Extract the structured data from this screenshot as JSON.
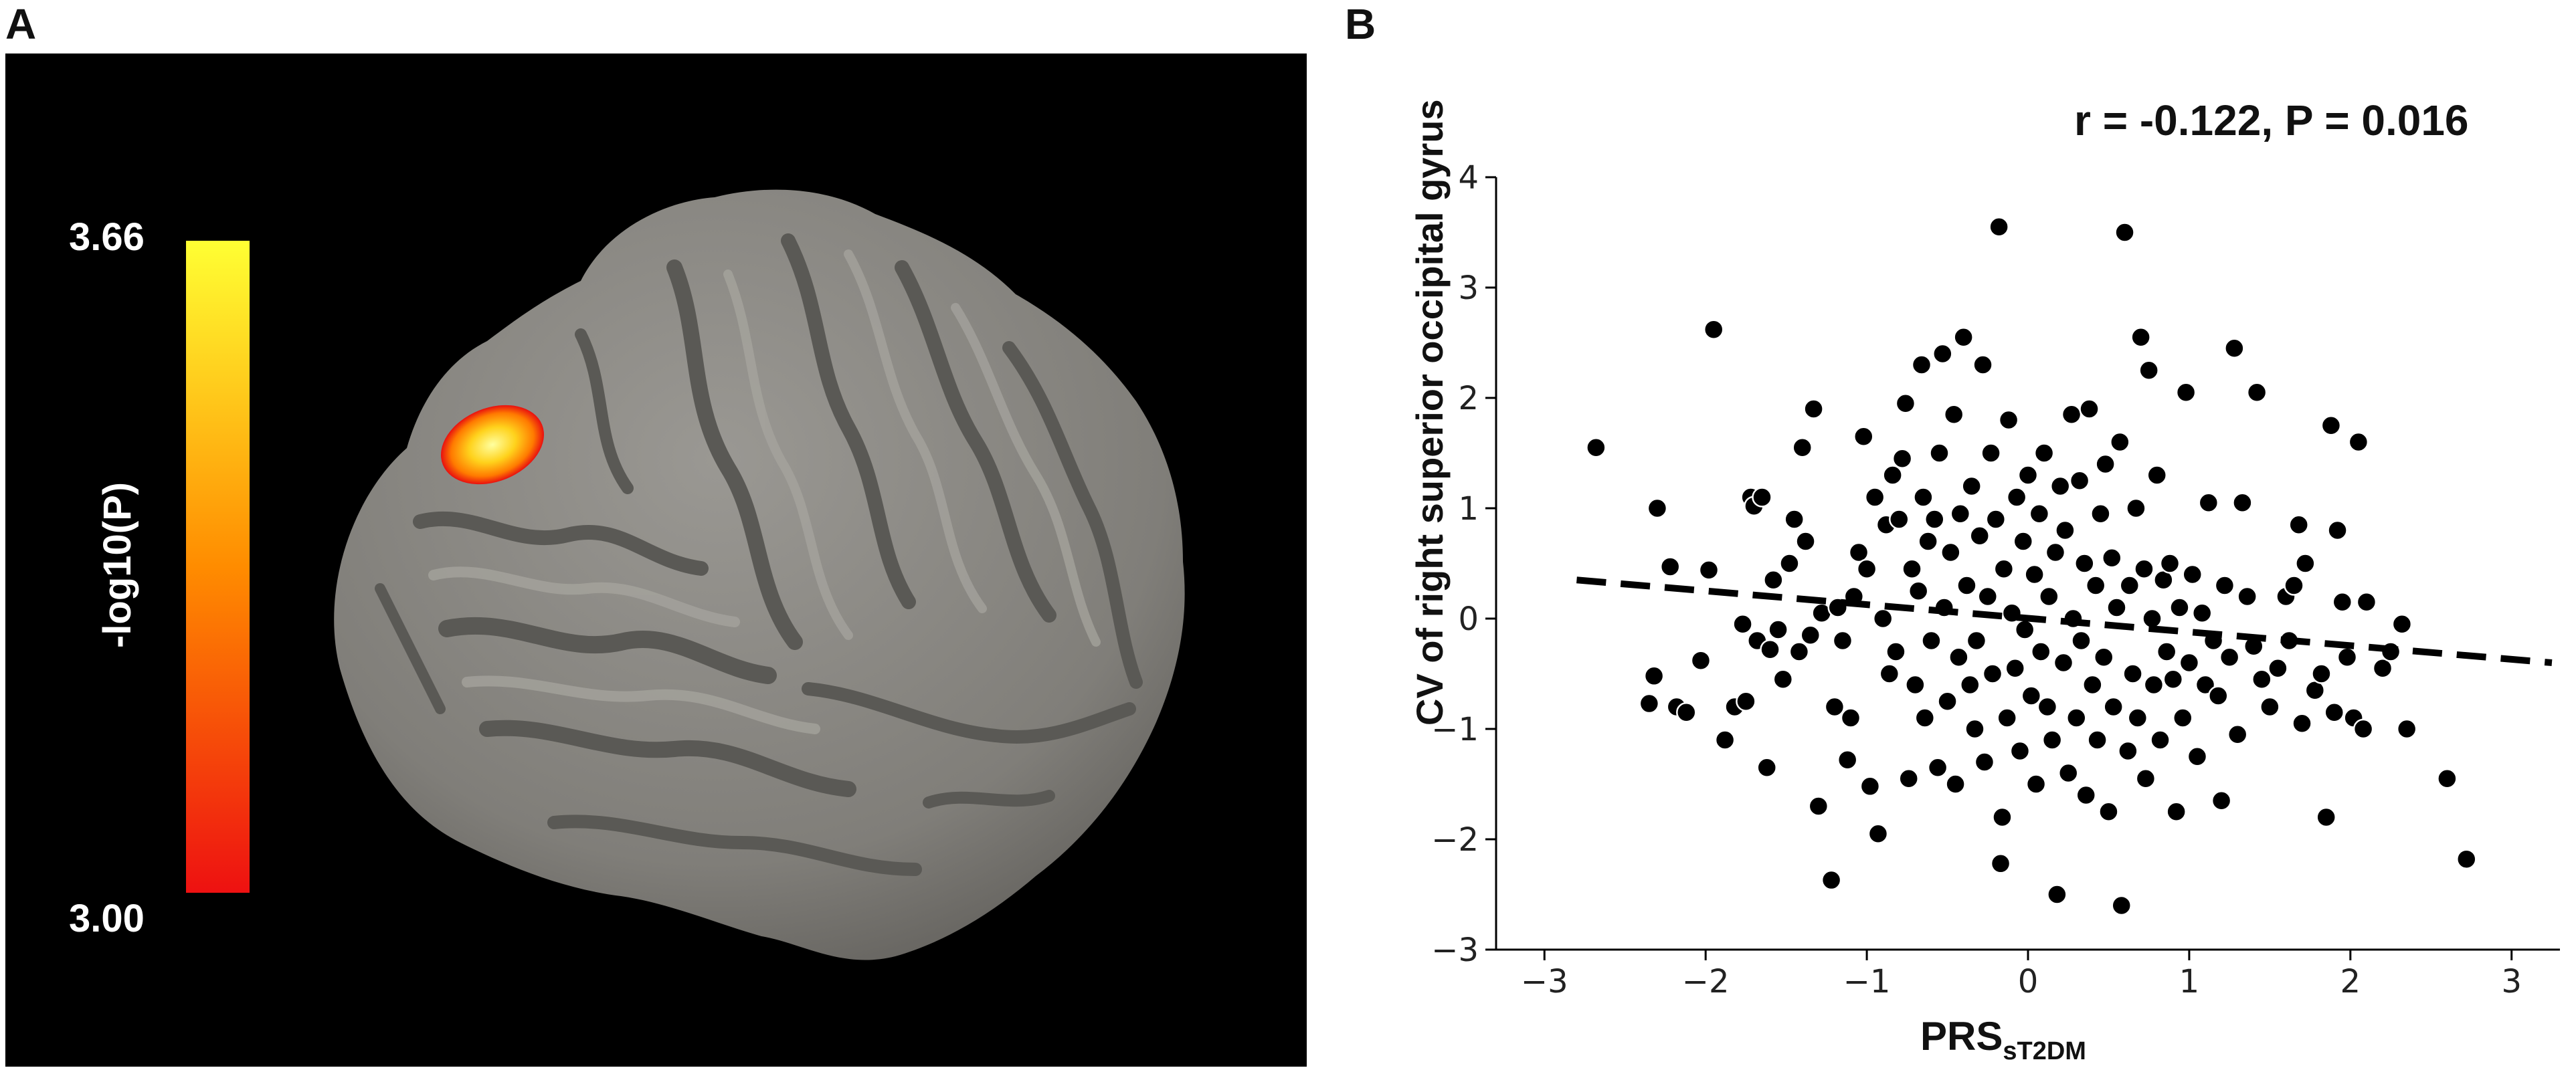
{
  "panel_a": {
    "letter": "A",
    "colorbar": {
      "max_label": "3.66",
      "min_label": "3.00",
      "title": "-log10(P)",
      "color_top": "#ffff33",
      "color_mid": "#ff8c00",
      "color_bottom": "#ee1111"
    }
  },
  "panel_b": {
    "letter": "B",
    "stat_label": "r = -0.122, P = 0.016"
  },
  "chart_data": {
    "type": "scatter",
    "xlabel_main": "PRS",
    "xlabel_sub": "sT2DM",
    "ylabel": "CV of right superior occipital gyrus",
    "xlim": [
      -3.3,
      3.3
    ],
    "ylim": [
      -3,
      4
    ],
    "xticks": [
      -3,
      -2,
      -1,
      0,
      1,
      2,
      3
    ],
    "xtick_labels": [
      "−3",
      "−2",
      "−1",
      "0",
      "1",
      "2",
      "3"
    ],
    "yticks": [
      -3,
      -2,
      -1,
      0,
      1,
      2,
      3,
      4
    ],
    "ytick_labels": [
      "−3",
      "−2",
      "−1",
      "0",
      "1",
      "2",
      "3",
      "4"
    ],
    "grid": false,
    "legend": "none",
    "point_color": "#000000",
    "trend_line": {
      "style": "dashed",
      "x": [
        -2.8,
        3.25
      ],
      "y": [
        0.35,
        -0.4
      ]
    },
    "points": [
      [
        -2.68,
        1.55
      ],
      [
        -2.3,
        1.0
      ],
      [
        -2.32,
        -0.52
      ],
      [
        -2.35,
        -0.77
      ],
      [
        -2.22,
        0.47
      ],
      [
        -2.18,
        -0.8
      ],
      [
        -2.12,
        -0.85
      ],
      [
        -1.95,
        2.62
      ],
      [
        -1.98,
        0.44
      ],
      [
        -2.03,
        -0.38
      ],
      [
        -1.88,
        -1.1
      ],
      [
        -1.82,
        -0.8
      ],
      [
        -1.77,
        -0.05
      ],
      [
        -1.75,
        -0.75
      ],
      [
        -1.72,
        1.1
      ],
      [
        -1.7,
        1.02
      ],
      [
        -1.68,
        -0.2
      ],
      [
        -1.65,
        1.1
      ],
      [
        -1.62,
        -1.35
      ],
      [
        -1.6,
        -0.28
      ],
      [
        -1.58,
        0.35
      ],
      [
        -1.55,
        -0.1
      ],
      [
        -1.52,
        -0.55
      ],
      [
        -1.48,
        0.5
      ],
      [
        -1.45,
        0.9
      ],
      [
        -1.42,
        -0.3
      ],
      [
        -1.4,
        1.55
      ],
      [
        -1.38,
        0.7
      ],
      [
        -1.35,
        -0.15
      ],
      [
        -1.33,
        1.9
      ],
      [
        -1.3,
        -1.7
      ],
      [
        -1.28,
        0.05
      ],
      [
        -1.22,
        -2.37
      ],
      [
        -1.2,
        -0.8
      ],
      [
        -1.18,
        0.1
      ],
      [
        -1.15,
        -0.2
      ],
      [
        -1.12,
        -1.28
      ],
      [
        -1.1,
        -0.9
      ],
      [
        -1.08,
        0.2
      ],
      [
        -1.05,
        0.6
      ],
      [
        -1.02,
        1.65
      ],
      [
        -1.0,
        0.45
      ],
      [
        -0.98,
        -1.52
      ],
      [
        -0.95,
        1.1
      ],
      [
        -0.93,
        -1.95
      ],
      [
        -0.9,
        0.0
      ],
      [
        -0.88,
        0.85
      ],
      [
        -0.86,
        -0.5
      ],
      [
        -0.84,
        1.3
      ],
      [
        -0.82,
        -0.3
      ],
      [
        -0.8,
        0.9
      ],
      [
        -0.78,
        1.45
      ],
      [
        -0.76,
        1.95
      ],
      [
        -0.74,
        -1.45
      ],
      [
        -0.72,
        0.45
      ],
      [
        -0.7,
        -0.6
      ],
      [
        -0.68,
        0.25
      ],
      [
        -0.66,
        2.3
      ],
      [
        -0.65,
        1.1
      ],
      [
        -0.64,
        -0.9
      ],
      [
        -0.62,
        0.7
      ],
      [
        -0.6,
        -0.2
      ],
      [
        -0.58,
        0.9
      ],
      [
        -0.56,
        -1.35
      ],
      [
        -0.55,
        1.5
      ],
      [
        -0.53,
        2.4
      ],
      [
        -0.52,
        0.1
      ],
      [
        -0.5,
        -0.75
      ],
      [
        -0.48,
        0.6
      ],
      [
        -0.46,
        1.85
      ],
      [
        -0.45,
        -1.5
      ],
      [
        -0.43,
        -0.35
      ],
      [
        -0.42,
        0.95
      ],
      [
        -0.4,
        2.55
      ],
      [
        -0.38,
        0.3
      ],
      [
        -0.36,
        -0.6
      ],
      [
        -0.35,
        1.2
      ],
      [
        -0.33,
        -1.0
      ],
      [
        -0.32,
        -0.2
      ],
      [
        -0.3,
        0.75
      ],
      [
        -0.28,
        2.3
      ],
      [
        -0.27,
        -1.3
      ],
      [
        -0.25,
        0.2
      ],
      [
        -0.23,
        1.5
      ],
      [
        -0.22,
        -0.5
      ],
      [
        -0.2,
        0.9
      ],
      [
        -0.18,
        3.55
      ],
      [
        -0.17,
        -2.22
      ],
      [
        -0.16,
        -1.8
      ],
      [
        -0.15,
        0.45
      ],
      [
        -0.13,
        -0.9
      ],
      [
        -0.12,
        1.8
      ],
      [
        -0.1,
        0.05
      ],
      [
        -0.08,
        -0.45
      ],
      [
        -0.07,
        1.1
      ],
      [
        -0.05,
        -1.2
      ],
      [
        -0.03,
        0.7
      ],
      [
        -0.02,
        -0.1
      ],
      [
        0.0,
        1.3
      ],
      [
        0.02,
        -0.7
      ],
      [
        0.04,
        0.4
      ],
      [
        0.05,
        -1.5
      ],
      [
        0.07,
        0.95
      ],
      [
        0.08,
        -0.3
      ],
      [
        0.1,
        1.5
      ],
      [
        0.12,
        -0.8
      ],
      [
        0.13,
        0.2
      ],
      [
        0.15,
        -1.1
      ],
      [
        0.17,
        0.6
      ],
      [
        0.18,
        -2.5
      ],
      [
        0.2,
        1.2
      ],
      [
        0.22,
        -0.4
      ],
      [
        0.23,
        0.8
      ],
      [
        0.25,
        -1.4
      ],
      [
        0.27,
        1.85
      ],
      [
        0.28,
        0.0
      ],
      [
        0.3,
        -0.9
      ],
      [
        0.32,
        1.25
      ],
      [
        0.33,
        -0.2
      ],
      [
        0.35,
        0.5
      ],
      [
        0.36,
        -1.6
      ],
      [
        0.38,
        1.9
      ],
      [
        0.4,
        -0.6
      ],
      [
        0.42,
        0.3
      ],
      [
        0.43,
        -1.1
      ],
      [
        0.45,
        0.95
      ],
      [
        0.47,
        -0.35
      ],
      [
        0.48,
        1.4
      ],
      [
        0.5,
        -1.75
      ],
      [
        0.52,
        0.55
      ],
      [
        0.53,
        -0.8
      ],
      [
        0.55,
        0.1
      ],
      [
        0.57,
        1.6
      ],
      [
        0.58,
        -2.6
      ],
      [
        0.6,
        3.5
      ],
      [
        0.62,
        -1.2
      ],
      [
        0.63,
        0.3
      ],
      [
        0.65,
        -0.5
      ],
      [
        0.67,
        1.0
      ],
      [
        0.68,
        -0.9
      ],
      [
        0.7,
        2.55
      ],
      [
        0.72,
        0.45
      ],
      [
        0.73,
        -1.45
      ],
      [
        0.75,
        2.25
      ],
      [
        0.77,
        0.0
      ],
      [
        0.78,
        -0.6
      ],
      [
        0.8,
        1.3
      ],
      [
        0.82,
        -1.1
      ],
      [
        0.84,
        0.35
      ],
      [
        0.86,
        -0.3
      ],
      [
        0.88,
        0.5
      ],
      [
        0.9,
        -0.55
      ],
      [
        0.92,
        -1.75
      ],
      [
        0.94,
        0.1
      ],
      [
        0.96,
        -0.9
      ],
      [
        0.98,
        2.05
      ],
      [
        1.0,
        -0.4
      ],
      [
        1.02,
        0.4
      ],
      [
        1.05,
        -1.25
      ],
      [
        1.08,
        0.05
      ],
      [
        1.1,
        -0.6
      ],
      [
        1.12,
        1.05
      ],
      [
        1.15,
        -0.2
      ],
      [
        1.18,
        -0.7
      ],
      [
        1.2,
        -1.65
      ],
      [
        1.22,
        0.3
      ],
      [
        1.25,
        -0.35
      ],
      [
        1.28,
        2.45
      ],
      [
        1.3,
        -1.05
      ],
      [
        1.33,
        1.05
      ],
      [
        1.36,
        0.2
      ],
      [
        1.4,
        -0.25
      ],
      [
        1.42,
        2.05
      ],
      [
        1.45,
        -0.55
      ],
      [
        1.5,
        -0.8
      ],
      [
        1.55,
        -0.45
      ],
      [
        1.6,
        0.2
      ],
      [
        1.62,
        -0.2
      ],
      [
        1.65,
        0.3
      ],
      [
        1.68,
        0.85
      ],
      [
        1.7,
        -0.95
      ],
      [
        1.72,
        0.5
      ],
      [
        1.78,
        -0.65
      ],
      [
        1.82,
        -0.5
      ],
      [
        1.85,
        -1.8
      ],
      [
        1.88,
        1.75
      ],
      [
        1.9,
        -0.85
      ],
      [
        1.92,
        0.8
      ],
      [
        1.95,
        0.15
      ],
      [
        1.98,
        -0.35
      ],
      [
        2.02,
        -0.9
      ],
      [
        2.05,
        1.6
      ],
      [
        2.08,
        -1.0
      ],
      [
        2.1,
        0.15
      ],
      [
        2.2,
        -0.45
      ],
      [
        2.25,
        -0.3
      ],
      [
        2.32,
        -0.05
      ],
      [
        2.35,
        -1.0
      ],
      [
        2.6,
        -1.45
      ],
      [
        2.72,
        -2.18
      ]
    ]
  }
}
